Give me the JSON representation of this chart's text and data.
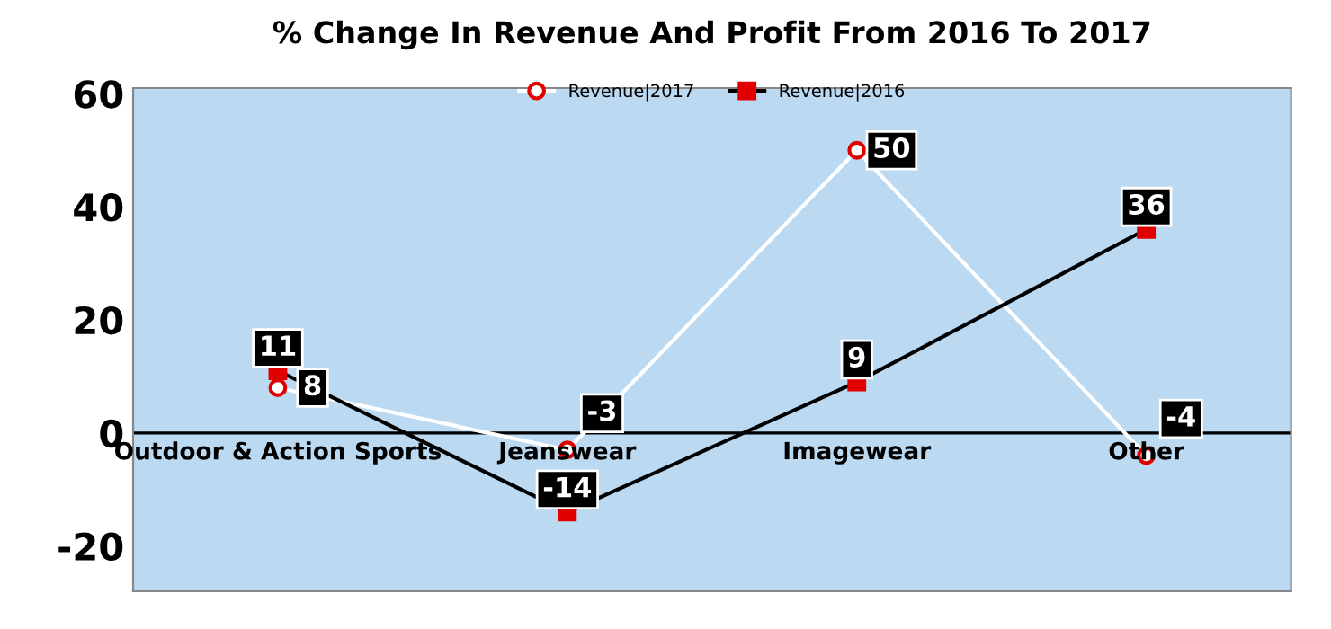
{
  "chart_data": {
    "type": "line",
    "title": "% Change In Revenue And Profit From 2016 To 2017",
    "categories": [
      "Outdoor & Action Sports",
      "Jeanswear",
      "Imagewear",
      "Other"
    ],
    "series": [
      {
        "name": "Revenue|2017",
        "color": "#ffffff",
        "marker": "circle",
        "values": [
          8,
          -3,
          50,
          -4
        ]
      },
      {
        "name": "Revenue|2016",
        "color": "#000000",
        "marker": "square",
        "values": [
          11,
          -14,
          9,
          36
        ]
      }
    ],
    "ylim": [
      -28,
      61
    ],
    "yticks": [
      -20,
      0,
      20,
      40,
      60
    ],
    "grid": false,
    "legend": "top",
    "data_labels": true,
    "line_style": "solid"
  }
}
